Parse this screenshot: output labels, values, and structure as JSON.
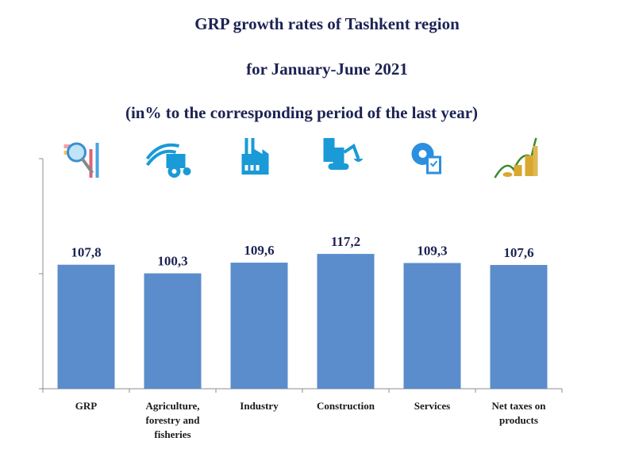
{
  "chart_data": {
    "type": "bar",
    "title": "GRP growth rates of Tashkent region",
    "subtitle": "for January-June 2021",
    "note": "(in% to the corresponding period of the last year)",
    "categories": [
      [
        "GRP"
      ],
      [
        "Agriculture,",
        "forestry and",
        "fisheries"
      ],
      [
        "Industry"
      ],
      [
        "Construction"
      ],
      [
        "Services"
      ],
      [
        "Net taxes on",
        "products"
      ]
    ],
    "values": [
      107.8,
      100.3,
      109.6,
      117.2,
      109.3,
      107.6
    ],
    "value_labels": [
      "107,8",
      "100,3",
      "109,6",
      "117,2",
      "109,3",
      "107,6"
    ],
    "icons": [
      "magnifier-chart-icon",
      "tractor-field-icon",
      "factory-icon",
      "construction-excavator-icon",
      "gear-checklist-icon",
      "coins-growth-icon"
    ],
    "xlabel": "",
    "ylabel": "",
    "ylim": [
      0,
      200
    ],
    "yticks": [
      0,
      100,
      200
    ],
    "grid": false,
    "legend": "none",
    "colors": {
      "bar": "#5b8ccb",
      "text": "#1c2354",
      "axis": "#8c8c8c",
      "icon": "#1a9ad6"
    }
  }
}
